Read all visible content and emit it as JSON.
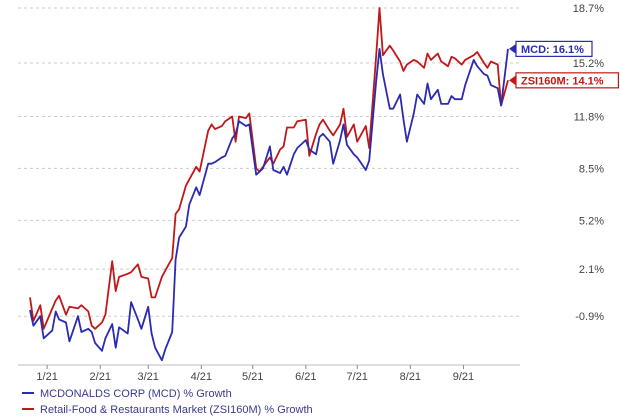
{
  "chart_data": {
    "type": "line",
    "x": [
      "2020-12-22",
      "2020-12-24",
      "2020-12-28",
      "2020-12-30",
      "2021-01-04",
      "2021-01-06",
      "2021-01-08",
      "2021-01-12",
      "2021-01-14",
      "2021-01-19",
      "2021-01-21",
      "2021-01-25",
      "2021-01-27",
      "2021-01-29",
      "2021-02-02",
      "2021-02-04",
      "2021-02-08",
      "2021-02-10",
      "2021-02-12",
      "2021-02-17",
      "2021-02-19",
      "2021-02-23",
      "2021-02-25",
      "2021-03-01",
      "2021-03-03",
      "2021-03-05",
      "2021-03-09",
      "2021-03-11",
      "2021-03-15",
      "2021-03-17",
      "2021-03-19",
      "2021-03-23",
      "2021-03-25",
      "2021-03-29",
      "2021-03-31",
      "2021-04-05",
      "2021-04-07",
      "2021-04-09",
      "2021-04-13",
      "2021-04-15",
      "2021-04-19",
      "2021-04-21",
      "2021-04-23",
      "2021-04-27",
      "2021-04-29",
      "2021-05-03",
      "2021-05-05",
      "2021-05-07",
      "2021-05-11",
      "2021-05-13",
      "2021-05-17",
      "2021-05-19",
      "2021-05-21",
      "2021-05-25",
      "2021-05-27",
      "2021-06-01",
      "2021-06-03",
      "2021-06-07",
      "2021-06-09",
      "2021-06-11",
      "2021-06-15",
      "2021-06-17",
      "2021-06-21",
      "2021-06-23",
      "2021-06-25",
      "2021-06-29",
      "2021-07-01",
      "2021-07-06",
      "2021-07-08",
      "2021-07-12",
      "2021-07-14",
      "2021-07-16",
      "2021-07-20",
      "2021-07-22",
      "2021-07-26",
      "2021-07-28",
      "2021-07-30",
      "2021-08-03",
      "2021-08-05",
      "2021-08-09",
      "2021-08-11",
      "2021-08-13",
      "2021-08-17",
      "2021-08-19",
      "2021-08-23",
      "2021-08-25",
      "2021-08-27",
      "2021-08-31",
      "2021-09-02",
      "2021-09-07",
      "2021-09-09",
      "2021-09-13",
      "2021-09-15",
      "2021-09-17",
      "2021-09-21",
      "2021-09-23",
      "2021-09-27"
    ],
    "series": [
      {
        "name": "MCDONALDS CORP (MCD) % Growth",
        "color": "#2b2bb0",
        "values": [
          -0.5,
          -1.5,
          -0.9,
          -2.3,
          -1.8,
          -0.6,
          -1.1,
          -1.3,
          -2.5,
          -0.9,
          -1.9,
          -1.7,
          -1.9,
          -2.6,
          -3.1,
          -2.3,
          -1.4,
          -2.9,
          -1.6,
          -2.0,
          0.0,
          -1.1,
          -1.7,
          -0.3,
          -2.0,
          -2.9,
          -3.7,
          -3.0,
          -1.9,
          2.7,
          4.1,
          4.8,
          6.2,
          7.3,
          6.8,
          8.8,
          8.8,
          8.9,
          9.2,
          9.3,
          10.4,
          10.7,
          11.5,
          11.2,
          11.3,
          8.1,
          8.3,
          8.5,
          9.9,
          8.4,
          8.2,
          8.6,
          8.1,
          9.4,
          9.8,
          10.3,
          9.7,
          9.4,
          10.5,
          10.7,
          10.2,
          8.8,
          10.3,
          11.3,
          10.0,
          9.4,
          9.2,
          8.4,
          9.0,
          14.0,
          16.1,
          14.5,
          12.3,
          12.3,
          13.2,
          11.6,
          10.2,
          12.0,
          13.2,
          12.6,
          13.9,
          12.9,
          13.5,
          12.6,
          12.6,
          13.1,
          12.9,
          12.9,
          13.8,
          15.4,
          15.0,
          14.5,
          14.4,
          13.8,
          13.6,
          12.5,
          16.1
        ]
      },
      {
        "name": "Retail-Food & Restaurants Market (ZSI160M) % Growth",
        "color": "#c01818",
        "values": [
          0.3,
          -1.2,
          -0.2,
          -1.7,
          -0.4,
          0.1,
          0.4,
          -0.8,
          -0.3,
          -0.4,
          -0.2,
          -0.6,
          -1.5,
          -1.7,
          -1.3,
          -0.8,
          2.6,
          0.7,
          1.6,
          1.8,
          1.9,
          2.4,
          1.6,
          1.5,
          0.3,
          0.3,
          1.6,
          2.0,
          2.8,
          5.6,
          5.9,
          7.4,
          7.8,
          8.6,
          8.3,
          10.9,
          11.3,
          11.0,
          11.2,
          11.5,
          11.8,
          10.2,
          11.8,
          11.7,
          12.0,
          8.5,
          8.3,
          8.6,
          9.2,
          8.8,
          9.7,
          9.9,
          11.1,
          11.1,
          11.5,
          11.6,
          9.3,
          10.7,
          11.3,
          11.6,
          10.9,
          10.6,
          11.3,
          12.3,
          10.5,
          11.3,
          10.2,
          11.2,
          9.8,
          15.6,
          18.7,
          15.7,
          16.3,
          16.0,
          15.3,
          14.7,
          15.1,
          15.4,
          15.3,
          14.9,
          15.8,
          15.4,
          15.8,
          15.3,
          15.0,
          15.6,
          15.5,
          15.1,
          15.4,
          15.7,
          15.9,
          15.2,
          14.9,
          15.3,
          15.1,
          12.5,
          14.1
        ]
      }
    ],
    "x_tick_labels": [
      "1/21",
      "2/21",
      "3/21",
      "4/21",
      "5/21",
      "6/21",
      "7/21",
      "8/21",
      "9/21"
    ],
    "y_tick_labels": [
      "18.7%",
      "15.2%",
      "11.8%",
      "8.5%",
      "5.2%",
      "2.1%",
      "-0.9%"
    ],
    "y_ticks": [
      18.7,
      15.2,
      11.8,
      8.5,
      5.2,
      2.1,
      -0.9
    ],
    "ylim": [
      -4.0,
      18.7
    ],
    "callouts": [
      {
        "label": "MCD: 16.1%",
        "value": 16.1,
        "color": "#2b2bb0"
      },
      {
        "label": "ZSI160M: 14.1%",
        "value": 14.1,
        "color": "#c01818"
      }
    ],
    "grid": "horizontal-dashed",
    "legend_position": "bottom-left"
  }
}
